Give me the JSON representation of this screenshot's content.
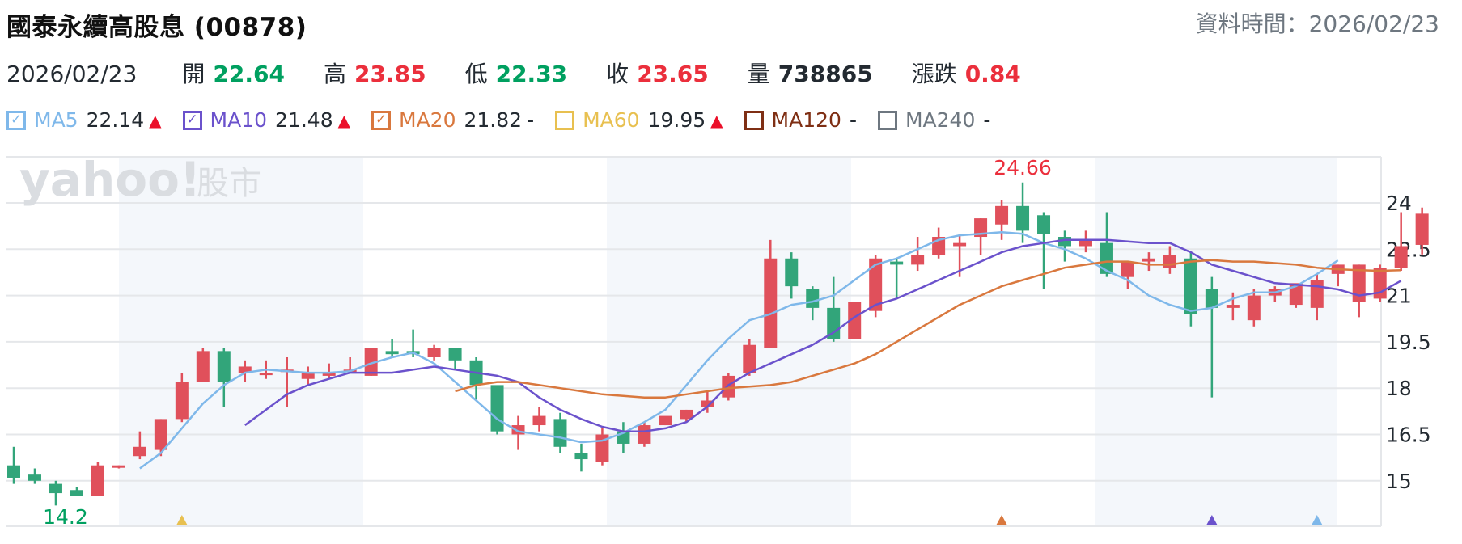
{
  "header": {
    "title": "國泰永續高股息 (00878)",
    "data_time": "資料時間：2026/02/23"
  },
  "stats": {
    "date": "2026/02/23",
    "items": [
      {
        "label": "開",
        "value": "22.64",
        "color": "#00a060"
      },
      {
        "label": "高",
        "value": "23.85",
        "color": "#eb2f3c"
      },
      {
        "label": "低",
        "value": "22.33",
        "color": "#00a060"
      },
      {
        "label": "收",
        "value": "23.65",
        "color": "#eb2f3c"
      },
      {
        "label": "量",
        "value": "738865",
        "color": "#232a31"
      },
      {
        "label": "漲跌",
        "value": "0.84",
        "color": "#eb2f3c"
      }
    ]
  },
  "legend": [
    {
      "name": "MA5",
      "value": "22.14",
      "trend": "▲",
      "checked": true,
      "color": "#7fb8ea"
    },
    {
      "name": "MA10",
      "value": "21.48",
      "trend": "▲",
      "checked": true,
      "color": "#6b52cc"
    },
    {
      "name": "MA20",
      "value": "21.82",
      "trend": "-",
      "checked": true,
      "color": "#d9783e"
    },
    {
      "name": "MA60",
      "value": "19.95",
      "trend": "▲",
      "checked": false,
      "color": "#e8c050"
    },
    {
      "name": "MA120",
      "value": "",
      "trend": "-",
      "checked": false,
      "color": "#7f2f14"
    },
    {
      "name": "MA240",
      "value": "",
      "trend": "-",
      "checked": false,
      "color": "#6e7780"
    }
  ],
  "watermark": {
    "brand": "yahoo!",
    "suffix": "股市"
  },
  "colors": {
    "up": "#e0505b",
    "down": "#32a57a",
    "grid": "#e5e7ea",
    "band": "#f4f7fb"
  },
  "chart_data": {
    "type": "candlestick",
    "title": "國泰永續高股息 (00878)",
    "ylabel": "",
    "ylim": [
      13.25,
      25.2
    ],
    "yticks": [
      15,
      16.5,
      18,
      19.5,
      21,
      22.5,
      24
    ],
    "grid": true,
    "annotations": [
      {
        "text": "24.66",
        "type": "max",
        "color": "#eb2f3c"
      },
      {
        "text": "14.2",
        "type": "min",
        "color": "#00a060"
      }
    ],
    "cross_markers": [
      {
        "index": 8,
        "color": "#e8c050"
      },
      {
        "index": 47,
        "color": "#d9783e"
      },
      {
        "index": 57,
        "color": "#6b52cc"
      },
      {
        "index": 62,
        "color": "#7fb8ea"
      }
    ],
    "candles": [
      [
        15.5,
        16.1,
        14.9,
        15.1
      ],
      [
        15.2,
        15.4,
        14.9,
        15.0
      ],
      [
        14.9,
        15.0,
        14.2,
        14.6
      ],
      [
        14.7,
        14.8,
        14.5,
        14.5
      ],
      [
        14.5,
        15.6,
        14.5,
        15.5
      ],
      [
        15.5,
        15.5,
        15.4,
        15.5
      ],
      [
        15.8,
        16.6,
        15.7,
        16.1
      ],
      [
        16.0,
        17.0,
        15.8,
        17.0
      ],
      [
        17.0,
        18.5,
        16.9,
        18.2
      ],
      [
        18.2,
        19.3,
        18.2,
        19.2
      ],
      [
        19.2,
        19.3,
        17.4,
        18.2
      ],
      [
        18.5,
        18.9,
        18.2,
        18.7
      ],
      [
        18.5,
        18.9,
        18.3,
        18.5
      ],
      [
        18.6,
        19.0,
        17.4,
        18.6
      ],
      [
        18.3,
        18.7,
        18.1,
        18.5
      ],
      [
        18.4,
        18.8,
        18.3,
        18.5
      ],
      [
        18.6,
        19.0,
        18.5,
        18.6
      ],
      [
        18.4,
        19.3,
        18.4,
        19.3
      ],
      [
        19.2,
        19.6,
        19.0,
        19.1
      ],
      [
        19.2,
        19.9,
        19.0,
        19.1
      ],
      [
        19.0,
        19.4,
        18.9,
        19.3
      ],
      [
        19.3,
        19.3,
        18.6,
        18.9
      ],
      [
        18.9,
        19.0,
        17.6,
        18.1
      ],
      [
        18.1,
        18.0,
        16.5,
        16.6
      ],
      [
        16.5,
        17.1,
        16.0,
        16.8
      ],
      [
        16.8,
        17.4,
        16.6,
        17.1
      ],
      [
        17.0,
        17.2,
        15.9,
        16.1
      ],
      [
        15.9,
        16.2,
        15.3,
        15.7
      ],
      [
        15.6,
        16.7,
        15.5,
        16.5
      ],
      [
        16.6,
        16.9,
        15.9,
        16.2
      ],
      [
        16.2,
        16.9,
        16.1,
        16.8
      ],
      [
        16.8,
        17.0,
        16.8,
        17.1
      ],
      [
        17.0,
        17.3,
        16.9,
        17.3
      ],
      [
        17.4,
        17.9,
        17.2,
        17.6
      ],
      [
        17.7,
        18.5,
        17.6,
        18.4
      ],
      [
        18.5,
        19.6,
        18.4,
        19.4
      ],
      [
        19.3,
        22.8,
        19.3,
        22.2
      ],
      [
        22.2,
        22.4,
        20.9,
        21.3
      ],
      [
        21.2,
        21.3,
        20.2,
        20.6
      ],
      [
        20.6,
        21.6,
        19.5,
        19.6
      ],
      [
        19.6,
        20.8,
        19.6,
        20.8
      ],
      [
        20.5,
        22.3,
        20.3,
        22.2
      ],
      [
        22.1,
        22.2,
        20.9,
        22.0
      ],
      [
        22.0,
        22.9,
        21.8,
        22.3
      ],
      [
        22.3,
        23.2,
        22.2,
        22.9
      ],
      [
        22.6,
        23.0,
        21.6,
        22.7
      ],
      [
        22.9,
        23.5,
        22.3,
        23.5
      ],
      [
        23.3,
        24.1,
        22.8,
        23.9
      ],
      [
        23.9,
        24.66,
        22.7,
        23.1
      ],
      [
        23.6,
        23.7,
        21.2,
        23.0
      ],
      [
        22.9,
        23.1,
        22.1,
        22.6
      ],
      [
        22.6,
        23.1,
        22.4,
        22.8
      ],
      [
        22.7,
        23.7,
        21.6,
        21.7
      ],
      [
        21.6,
        22.0,
        21.2,
        22.1
      ],
      [
        22.1,
        22.4,
        21.8,
        22.2
      ],
      [
        21.9,
        22.6,
        21.7,
        22.3
      ],
      [
        22.2,
        22.4,
        20.0,
        20.4
      ],
      [
        21.2,
        21.6,
        17.7,
        20.6
      ],
      [
        20.6,
        21.1,
        20.2,
        20.7
      ],
      [
        20.2,
        21.2,
        20.0,
        21.0
      ],
      [
        21.0,
        21.3,
        20.8,
        21.2
      ],
      [
        20.7,
        21.3,
        20.6,
        21.4
      ],
      [
        20.6,
        21.7,
        20.2,
        21.5
      ],
      [
        21.7,
        22.0,
        21.3,
        22.0
      ],
      [
        20.8,
        22.0,
        20.3,
        22.0
      ],
      [
        20.9,
        22.0,
        20.8,
        21.9
      ],
      [
        21.9,
        23.7,
        21.8,
        22.6
      ],
      [
        22.64,
        23.85,
        22.33,
        23.65
      ]
    ],
    "series": [
      {
        "name": "MA5",
        "color": "#7fb8ea",
        "start": 6,
        "values": [
          15.4,
          15.9,
          16.7,
          17.5,
          18.1,
          18.5,
          18.6,
          18.55,
          18.5,
          18.5,
          18.55,
          18.8,
          19.0,
          19.15,
          18.8,
          18.2,
          17.6,
          17.0,
          16.6,
          16.5,
          16.4,
          16.25,
          16.3,
          16.55,
          16.9,
          17.3,
          18.1,
          18.9,
          19.6,
          20.2,
          20.4,
          20.7,
          20.8,
          21.0,
          21.5,
          22.0,
          22.2,
          22.5,
          22.8,
          22.95,
          23.0,
          23.05,
          23.0,
          22.7,
          22.5,
          22.2,
          21.8,
          21.5,
          21.0,
          20.7,
          20.5,
          20.6,
          20.9,
          21.1,
          21.1,
          21.3,
          21.7,
          22.14
        ]
      },
      {
        "name": "MA10",
        "color": "#6b52cc",
        "start": 11,
        "values": [
          16.8,
          17.3,
          17.8,
          18.1,
          18.3,
          18.5,
          18.5,
          18.5,
          18.6,
          18.7,
          18.6,
          18.5,
          18.4,
          18.2,
          17.7,
          17.3,
          17.0,
          16.75,
          16.6,
          16.6,
          16.7,
          16.9,
          17.4,
          18.1,
          18.5,
          18.8,
          19.1,
          19.4,
          19.8,
          20.3,
          20.7,
          20.9,
          21.2,
          21.5,
          21.8,
          22.1,
          22.4,
          22.6,
          22.7,
          22.8,
          22.8,
          22.8,
          22.75,
          22.7,
          22.7,
          22.4,
          22.0,
          21.8,
          21.6,
          21.4,
          21.35,
          21.3,
          21.2,
          21.0,
          21.1,
          21.48
        ]
      },
      {
        "name": "MA20",
        "color": "#d9783e",
        "start": 21,
        "values": [
          17.9,
          18.1,
          18.2,
          18.2,
          18.1,
          18.0,
          17.9,
          17.8,
          17.75,
          17.7,
          17.7,
          17.8,
          17.9,
          18.0,
          18.05,
          18.1,
          18.2,
          18.4,
          18.6,
          18.8,
          19.1,
          19.5,
          19.9,
          20.3,
          20.7,
          21.0,
          21.3,
          21.5,
          21.7,
          21.9,
          22.0,
          22.1,
          22.1,
          22.0,
          22.0,
          22.1,
          22.15,
          22.1,
          22.1,
          22.05,
          22.0,
          21.9,
          21.85,
          21.82,
          21.8,
          21.82
        ]
      }
    ]
  }
}
